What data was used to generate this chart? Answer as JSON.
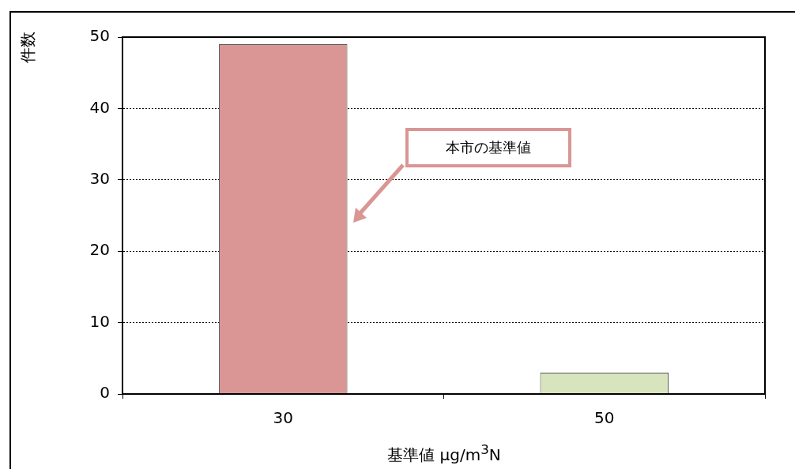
{
  "chart_data": {
    "type": "bar",
    "categories": [
      "30",
      "50"
    ],
    "values": [
      49,
      3
    ],
    "colors": [
      "#d99694",
      "#d7e4bd"
    ],
    "ylim": [
      0,
      50
    ],
    "yticks": [
      0,
      10,
      20,
      30,
      40,
      50
    ],
    "grid": "y",
    "ylabel": "件数",
    "xlabel": "基準値  μg/m$^{3}$N",
    "annotations": [
      "本市の基準値"
    ]
  }
}
